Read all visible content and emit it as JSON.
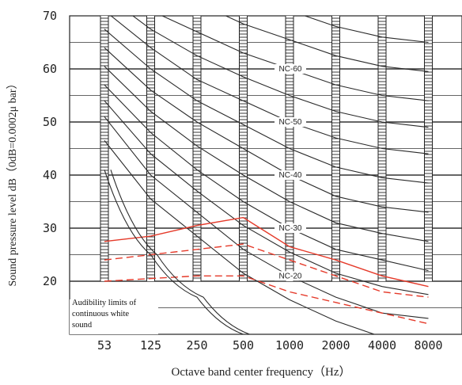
{
  "chart_data": {
    "type": "line",
    "ylabel": "Sound pressure level dB（0dB=0.0002μ bar）",
    "xlabel": "Octave band center frequency（Hz）",
    "x_categories": [
      "53",
      "125",
      "250",
      "500",
      "1000",
      "2000",
      "4000",
      "8000"
    ],
    "y_ticks": [
      20,
      30,
      40,
      50,
      60,
      70
    ],
    "ylim": [
      10,
      70
    ],
    "grid": true,
    "nc_curves": [
      {
        "label": "NC-60",
        "values": [
          77,
          71,
          67,
          63,
          60,
          57,
          55,
          54
        ]
      },
      {
        "label": "NC-50",
        "values": [
          71,
          64,
          58,
          54,
          50,
          47,
          45,
          44
        ]
      },
      {
        "label": "NC-40",
        "values": [
          64,
          56,
          50,
          45,
          40,
          36,
          34,
          33
        ]
      },
      {
        "label": "NC-30",
        "values": [
          57,
          48,
          41,
          35,
          30,
          26,
          24,
          22
        ]
      },
      {
        "label": "NC-20",
        "values": [
          51,
          40,
          33,
          26,
          21,
          17,
          14,
          13
        ]
      }
    ],
    "red_series": [
      {
        "style": "solid",
        "values": [
          27.5,
          28.5,
          30.5,
          32,
          26.5,
          24,
          21,
          19
        ]
      },
      {
        "style": "dashed",
        "values": [
          24,
          25,
          26,
          27,
          24,
          21,
          18,
          17
        ]
      },
      {
        "style": "dashed",
        "values": [
          20,
          20.5,
          21,
          21,
          18,
          16,
          14,
          12
        ]
      }
    ],
    "audibility_limit": [
      41,
      25,
      17,
      10
    ],
    "annotation": "Audibility limits of continuous white sound"
  }
}
